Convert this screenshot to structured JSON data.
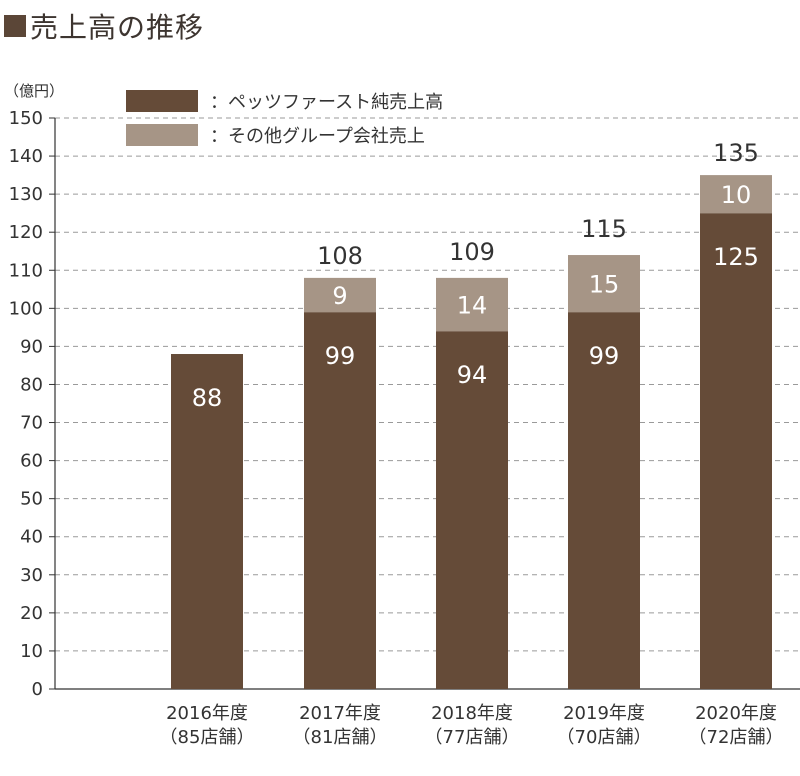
{
  "title": {
    "text": "売上高の推移",
    "square_color": "#5b4637"
  },
  "legend": {
    "items": [
      {
        "label": "：ペッツファースト純売上高",
        "color": "#654b38"
      },
      {
        "label": "：その他グループ会社売上",
        "color": "#a69586"
      }
    ]
  },
  "chart_data": {
    "type": "bar",
    "stacked": true,
    "unit_label": "（億円）",
    "categories": [
      "2016年度",
      "2017年度",
      "2018年度",
      "2019年度",
      "2020年度"
    ],
    "category_sublabels": [
      "（85店舗）",
      "（81店舗）",
      "（77店舗）",
      "（70店舗）",
      "（72店舗）"
    ],
    "series": [
      {
        "name": "ペッツファースト純売上高",
        "values": [
          88,
          99,
          94,
          99,
          125
        ],
        "color": "#654b38"
      },
      {
        "name": "その他グループ会社売上",
        "values": [
          null,
          9,
          14,
          15,
          10
        ],
        "color": "#a69586"
      }
    ],
    "totals": [
      null,
      108,
      109,
      115,
      135
    ],
    "segment_labels": [
      [
        "88",
        null
      ],
      [
        "99",
        "9"
      ],
      [
        "94",
        "14"
      ],
      [
        "99",
        "15"
      ],
      [
        "125",
        "10"
      ]
    ],
    "total_labels": [
      null,
      "108",
      "109",
      "115",
      "135"
    ],
    "ylim": [
      0,
      150
    ],
    "yticks": [
      0,
      10,
      20,
      30,
      40,
      50,
      60,
      70,
      80,
      90,
      100,
      110,
      120,
      130,
      140,
      150
    ],
    "grid": true,
    "legend_position": "top-left"
  }
}
